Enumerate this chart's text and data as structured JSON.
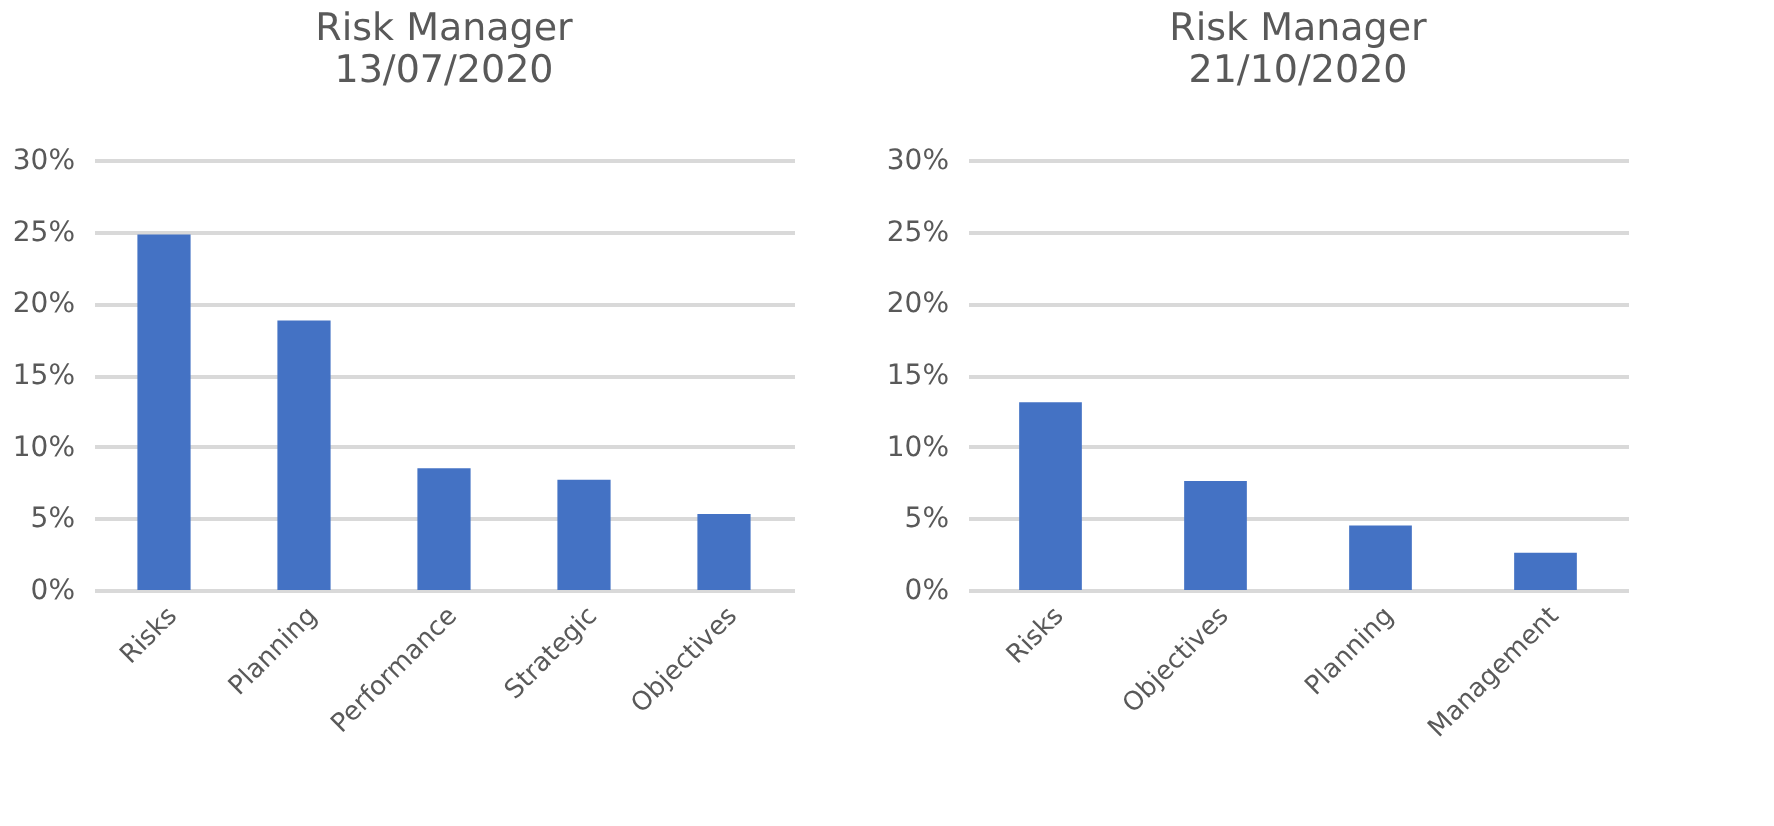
{
  "chart_data": [
    {
      "type": "bar",
      "title": "Risk Manager\n13/07/2020",
      "categories": [
        "Risks",
        "Planning",
        "Performance",
        "Strategic",
        "Objectives"
      ],
      "values": [
        24.8,
        18.8,
        8.5,
        7.7,
        5.3
      ],
      "color": "#4472c4",
      "ylim": [
        0,
        30
      ],
      "yticks": [
        {
          "value": 0,
          "label": "0%"
        },
        {
          "value": 5,
          "label": "5%"
        },
        {
          "value": 10,
          "label": "10%"
        },
        {
          "value": 15,
          "label": "15%"
        },
        {
          "value": 20,
          "label": "20%"
        },
        {
          "value": 25,
          "label": "25%"
        },
        {
          "value": 30,
          "label": "30%"
        }
      ],
      "grid": "y",
      "legend": false
    },
    {
      "type": "bar",
      "title": "Risk Manager\n21/10/2020",
      "categories": [
        "Risks",
        "Objectives",
        "Planning",
        "Management"
      ],
      "values": [
        13.1,
        7.6,
        4.5,
        2.6
      ],
      "color": "#4472c4",
      "ylim": [
        0,
        30
      ],
      "yticks": [
        {
          "value": 0,
          "label": "0%"
        },
        {
          "value": 5,
          "label": "5%"
        },
        {
          "value": 10,
          "label": "10%"
        },
        {
          "value": 15,
          "label": "15%"
        },
        {
          "value": 20,
          "label": "20%"
        },
        {
          "value": 25,
          "label": "25%"
        },
        {
          "value": 30,
          "label": "30%"
        }
      ],
      "grid": "y",
      "legend": false
    }
  ]
}
